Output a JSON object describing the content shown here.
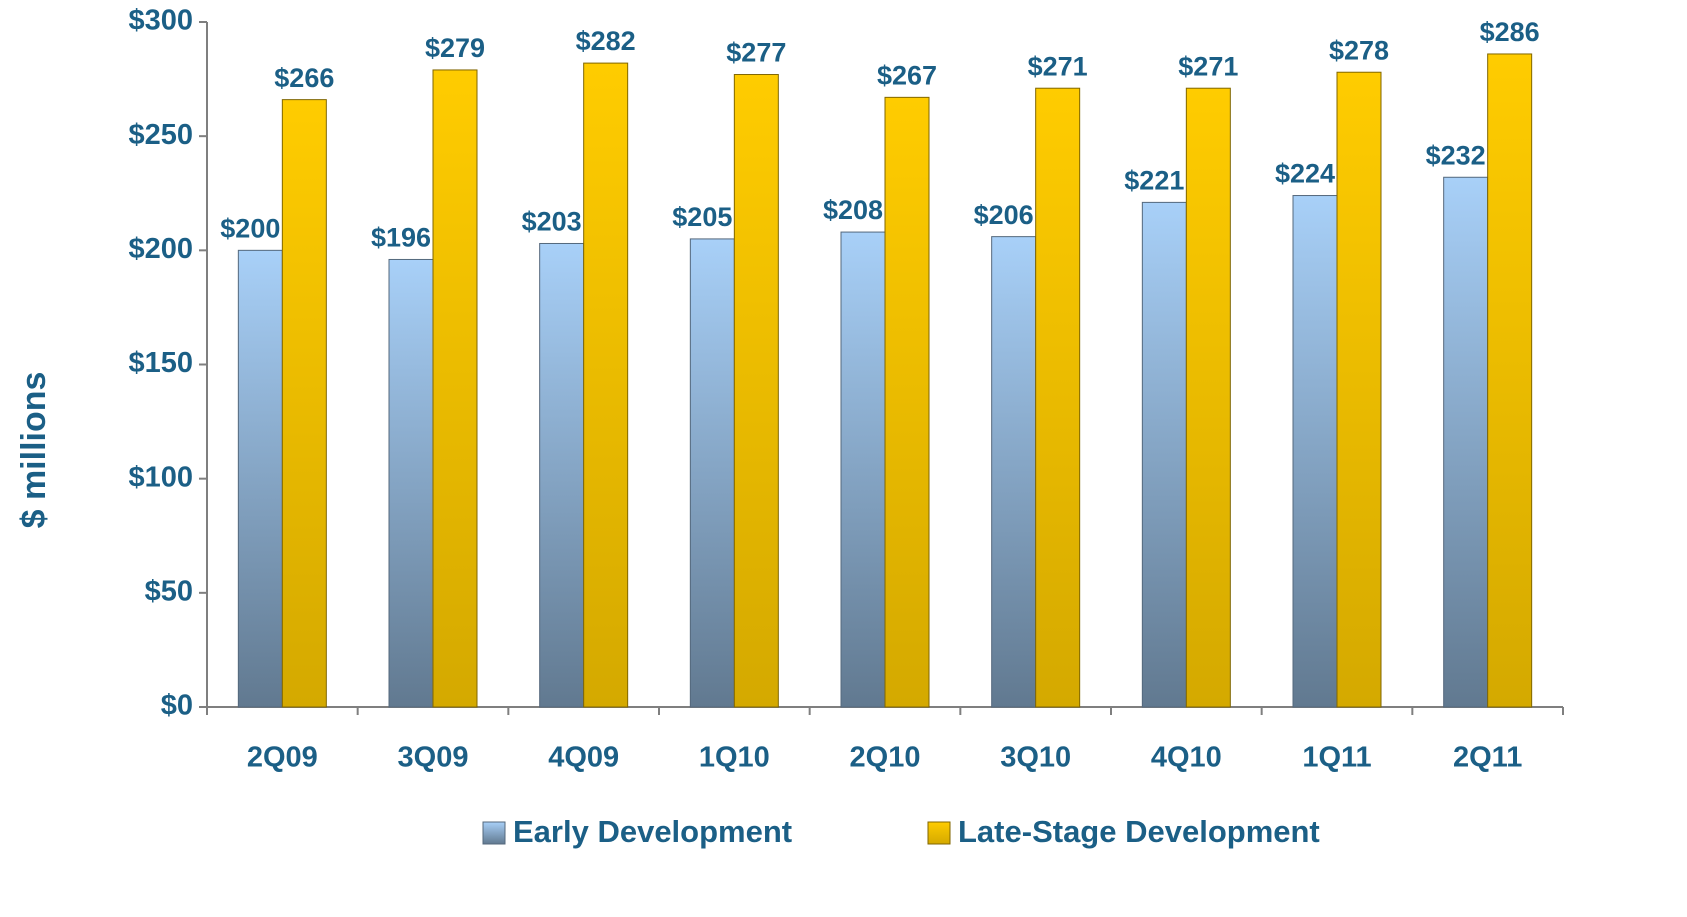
{
  "chart_data": {
    "type": "bar",
    "y_label": "$ millions",
    "categories": [
      "2Q09",
      "3Q09",
      "4Q09",
      "1Q10",
      "2Q10",
      "3Q10",
      "4Q10",
      "1Q11",
      "2Q11"
    ],
    "series": [
      {
        "name": "Early Development",
        "color": "#a8d0f8",
        "values": [
          200,
          196,
          203,
          205,
          208,
          206,
          221,
          224,
          232
        ],
        "value_labels": [
          "$200",
          "$196",
          "$203",
          "$205",
          "$208",
          "$206",
          "$221",
          "$224",
          "$232"
        ]
      },
      {
        "name": "Late-Stage Development",
        "color": "#ffcc00",
        "values": [
          266,
          279,
          282,
          277,
          267,
          271,
          271,
          278,
          286
        ],
        "value_labels": [
          "$266",
          "$279",
          "$282",
          "$277",
          "$267",
          "$271",
          "$271",
          "$278",
          "$286"
        ]
      }
    ],
    "ylim": [
      0,
      300
    ],
    "yticks": [
      {
        "value": 0,
        "label": "$0"
      },
      {
        "value": 50,
        "label": "$50"
      },
      {
        "value": 100,
        "label": "$100"
      },
      {
        "value": 150,
        "label": "$150"
      },
      {
        "value": 200,
        "label": "$200"
      },
      {
        "value": 250,
        "label": "$250"
      },
      {
        "value": 300,
        "label": "$300"
      }
    ],
    "legend": "bottom"
  }
}
